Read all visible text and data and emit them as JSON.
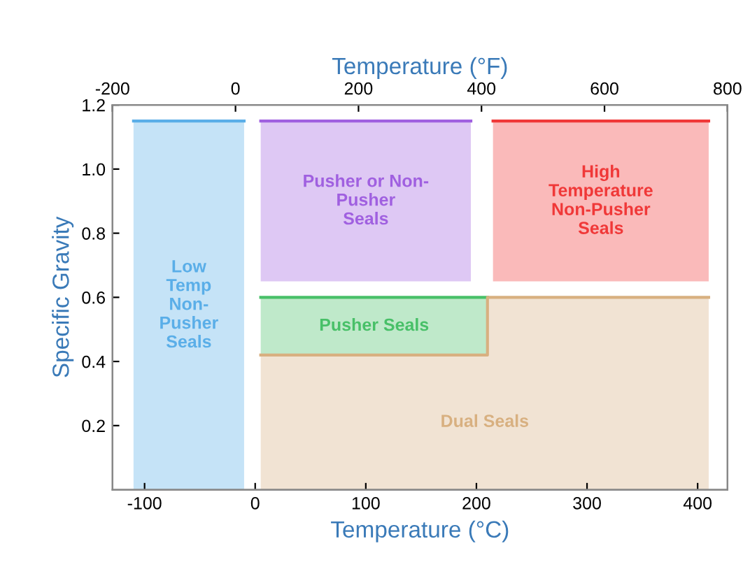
{
  "chart_data": {
    "type": "line",
    "xlabel": "Temperature (°C)",
    "x2label": "Temperature (°F)",
    "ylabel": "Specific Gravity",
    "xlim": [
      -129,
      427
    ],
    "xticks": [
      -100,
      0,
      100,
      200,
      300,
      400
    ],
    "x2lim": [
      -200,
      800
    ],
    "x2ticks": [
      -200,
      0,
      200,
      400,
      600,
      800
    ],
    "ylim": [
      0,
      1.2
    ],
    "yticks": [
      0.2,
      0.4,
      0.6,
      0.8,
      {
        "value": 1.0,
        "label": "1.0"
      },
      1.2
    ],
    "series": [
      {
        "name": "Low\nTemp\nNon-\nPusher\nSeals",
        "color": "#5aaee8",
        "x": [
          -110,
          -10
        ],
        "values": [
          1.15,
          1.15
        ],
        "lower": [
          0,
          0
        ],
        "upper": [
          1.15,
          1.15
        ]
      },
      {
        "name": "Pusher or Non-\nPusher\nSeals",
        "color": "#a060e0",
        "x": [
          5,
          195
        ],
        "values": [
          1.15,
          1.15
        ],
        "lower": [
          0.65,
          0.65
        ],
        "upper": [
          1.15,
          1.15
        ]
      },
      {
        "name": "High\nTemperature\nNon-Pusher\nSeals",
        "color": "#f03838",
        "x": [
          215,
          410
        ],
        "values": [
          1.15,
          1.15
        ],
        "lower": [
          0.65,
          0.65
        ],
        "upper": [
          1.15,
          1.15
        ]
      },
      {
        "name": "Pusher Seals",
        "color": "#48c068",
        "x": [
          5,
          210
        ],
        "values": [
          0.6,
          0.6
        ],
        "lower": [
          0.42,
          0.42
        ],
        "upper": [
          0.6,
          0.6
        ]
      },
      {
        "name": "Dual Seals",
        "color": "#d8b080",
        "x": [
          5,
          210,
          210,
          410
        ],
        "values": [
          0.42,
          0.42,
          0.6,
          0.6
        ],
        "lower": [
          0,
          0,
          0,
          0
        ],
        "upper": [
          0.42,
          0.42,
          0.6,
          0.6
        ]
      }
    ],
    "grid": false
  }
}
